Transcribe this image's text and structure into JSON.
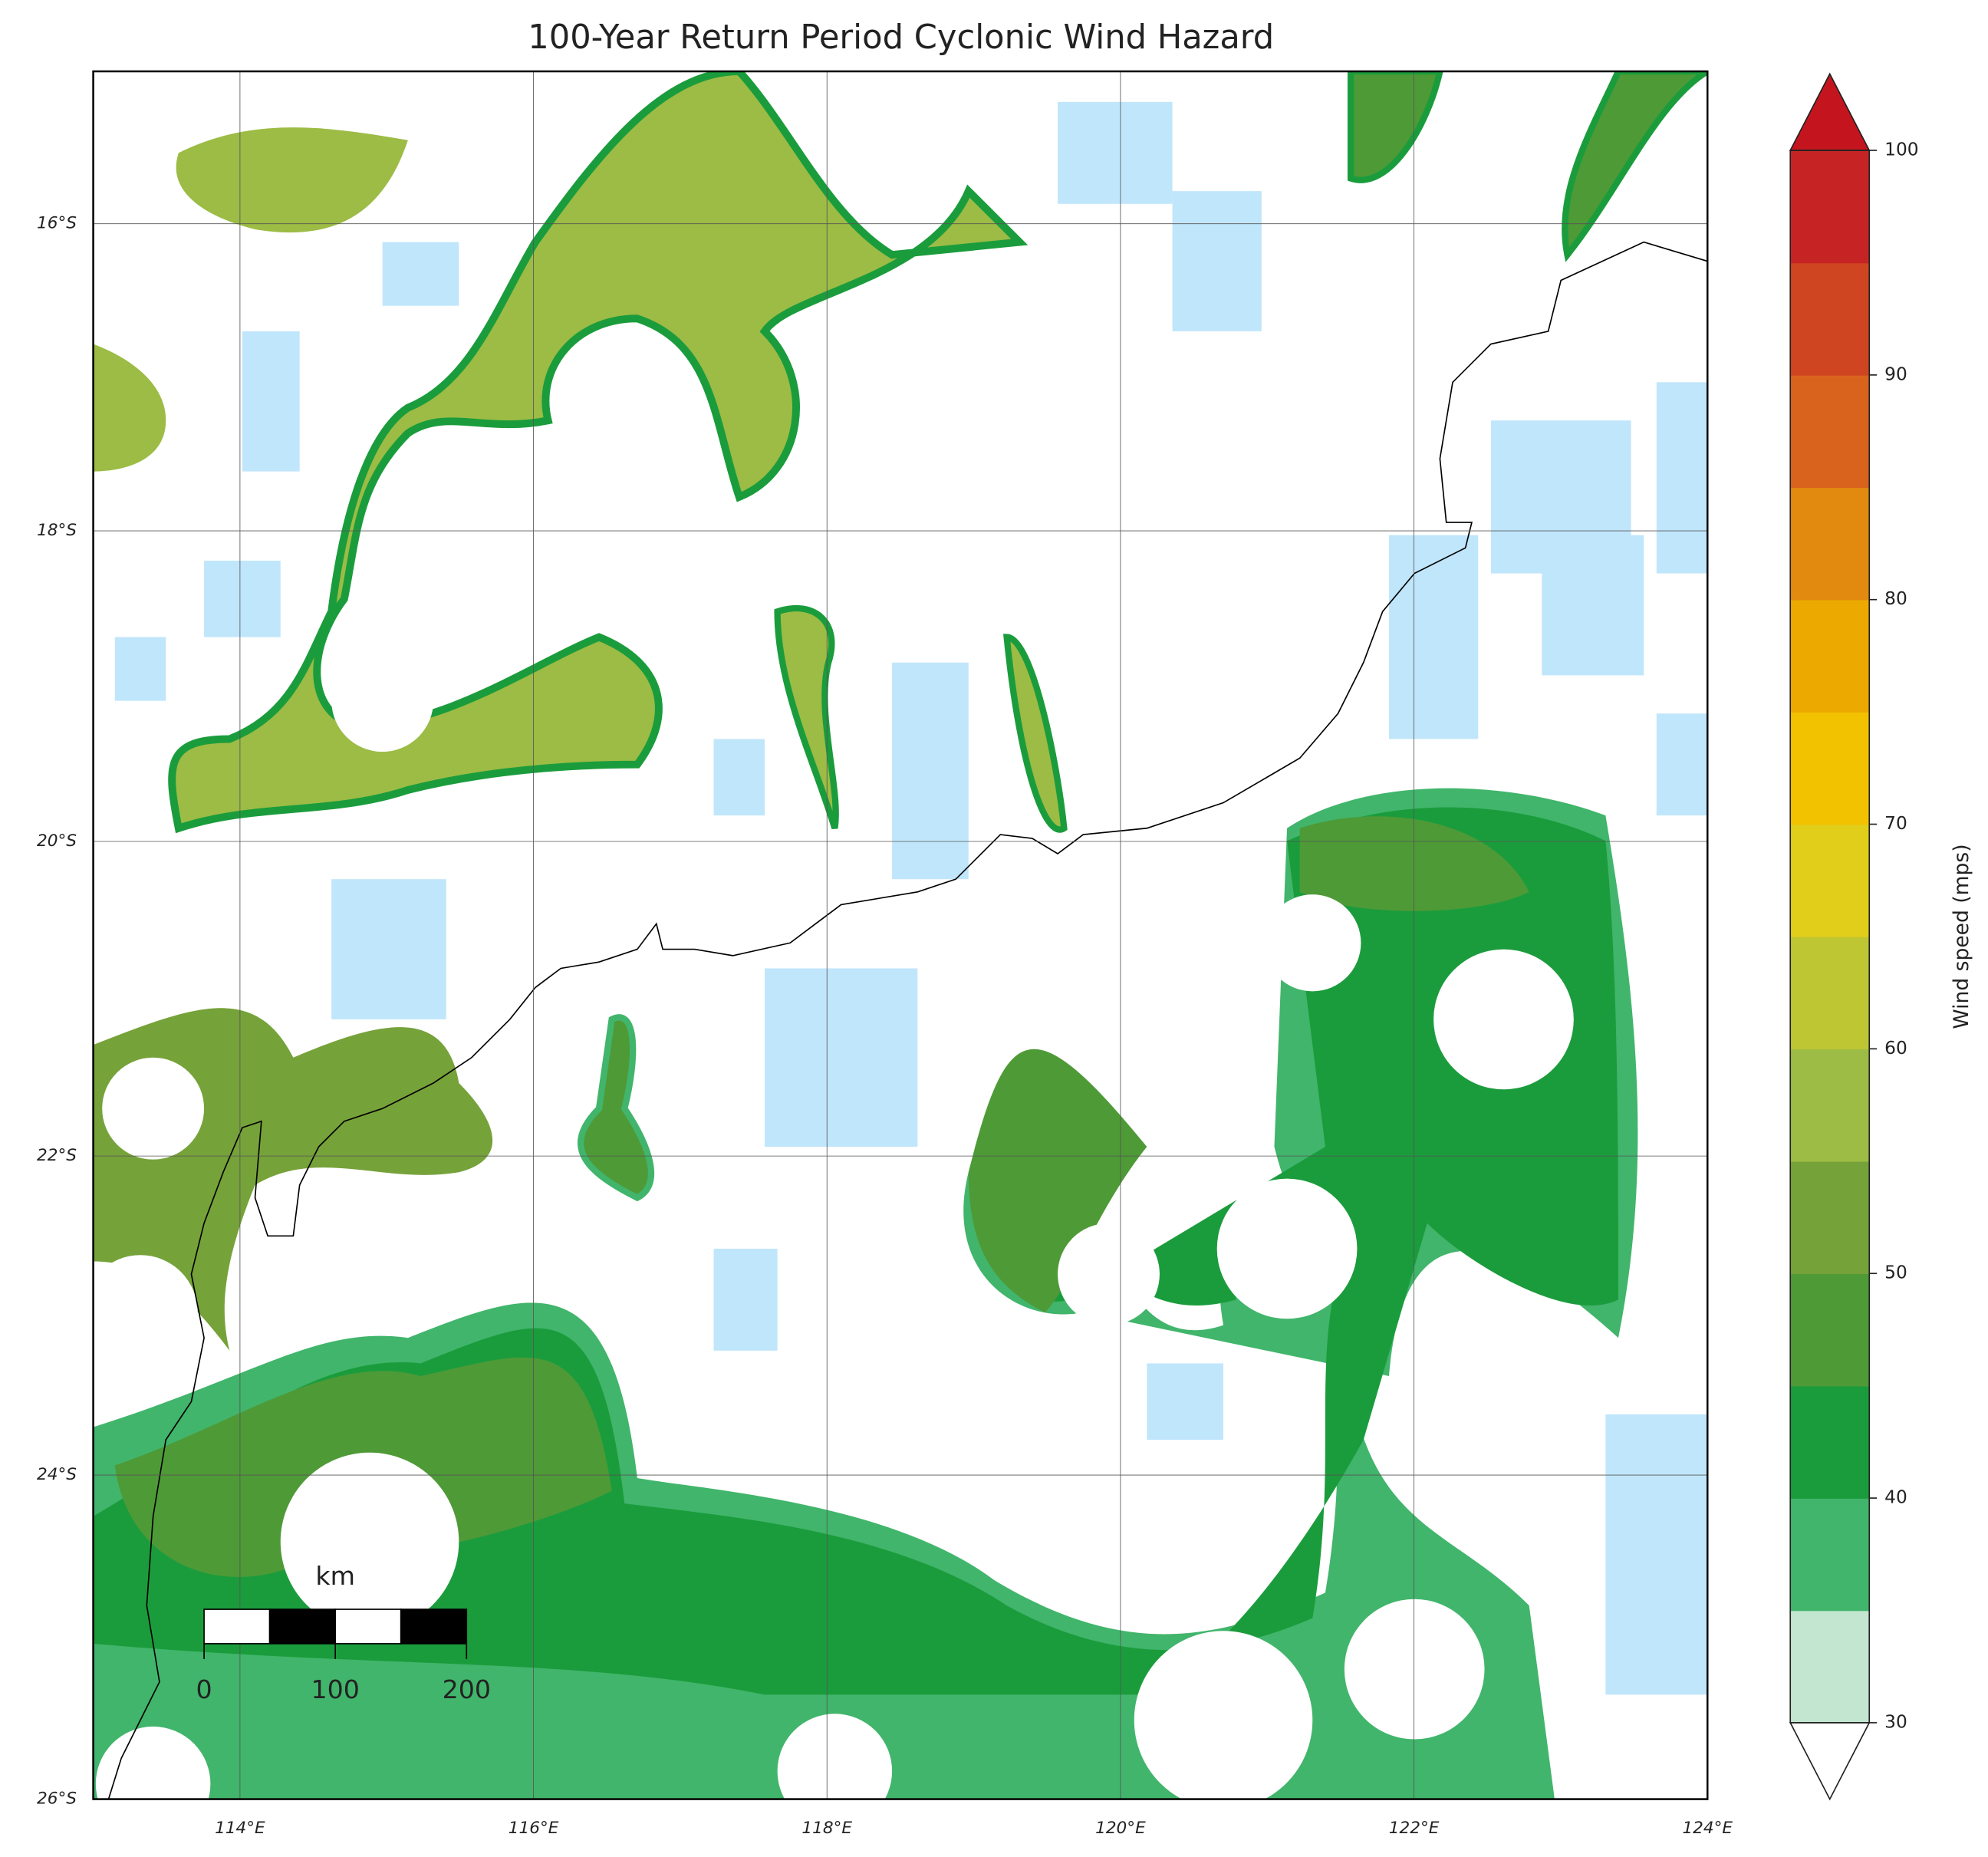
{
  "title": "100-Year Return Period Cyclonic Wind Hazard",
  "map": {
    "xlim": [
      113,
      124
    ],
    "ylim": [
      -26,
      -15
    ],
    "xticks": [
      {
        "value": 114,
        "label": "114°E"
      },
      {
        "value": 116,
        "label": "116°E"
      },
      {
        "value": 118,
        "label": "118°E"
      },
      {
        "value": 120,
        "label": "120°E"
      },
      {
        "value": 122,
        "label": "122°E"
      },
      {
        "value": 124,
        "label": "124°E"
      }
    ],
    "yticks": [
      {
        "value": -16,
        "label": "16°S"
      },
      {
        "value": -18,
        "label": "18°S"
      },
      {
        "value": -20,
        "label": "20°S"
      },
      {
        "value": -22,
        "label": "22°S"
      },
      {
        "value": -24,
        "label": "24°S"
      },
      {
        "value": -26,
        "label": "26°S"
      }
    ],
    "grid": true
  },
  "colorbar": {
    "label": "Wind speed (mps)",
    "levels": [
      30,
      35,
      40,
      45,
      50,
      55,
      60,
      65,
      70,
      75,
      80,
      85,
      90,
      95,
      100
    ],
    "colors": [
      "#c2e6cf",
      "#41b56b",
      "#1b9c3c",
      "#4e9a37",
      "#76a23a",
      "#9cbc45",
      "#bec634",
      "#e0ce1b",
      "#f2c200",
      "#ecaa00",
      "#e28a10",
      "#d9631d",
      "#cf4521",
      "#c62424"
    ],
    "extend_colors": [
      "#ffffff",
      "#c4151e"
    ],
    "ticks": [
      30,
      40,
      50,
      60,
      70,
      80,
      90,
      100
    ]
  },
  "scalebar": {
    "unit": "km",
    "ticks": [
      0,
      100,
      200
    ]
  }
}
